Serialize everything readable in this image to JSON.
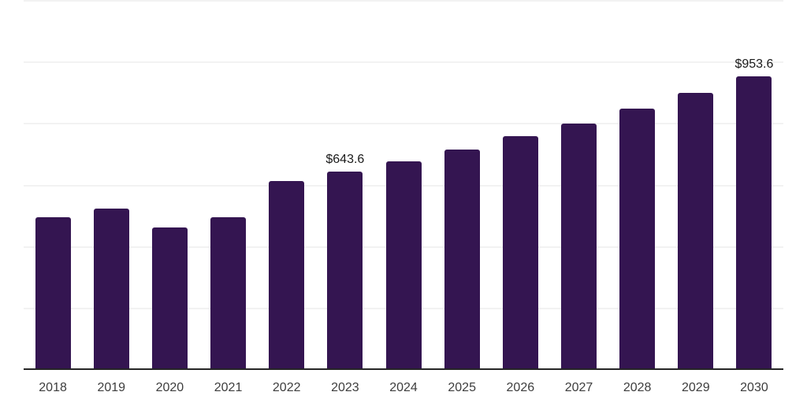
{
  "chart_data": {
    "type": "bar",
    "title": "",
    "xlabel": "",
    "ylabel": "",
    "categories": [
      "2018",
      "2019",
      "2020",
      "2021",
      "2022",
      "2023",
      "2024",
      "2025",
      "2026",
      "2027",
      "2028",
      "2029",
      "2030"
    ],
    "values": [
      496.1,
      525.4,
      462.0,
      496.1,
      613.4,
      643.6,
      678.0,
      715.8,
      759.2,
      800.0,
      848.8,
      900.0,
      953.6
    ],
    "data_labels": {
      "2023": "$643.6",
      "2030": "$953.6"
    },
    "ylim": [
      0,
      1200
    ],
    "gridline_step": 200,
    "grid": true,
    "legend": false,
    "colors": {
      "bar": "#341551",
      "gridline": "#f2f2f2",
      "axis_line": "#262626",
      "data_label_text": "#1a1a1a",
      "axis_label_text": "#3d3d3d",
      "background": "#ffffff"
    }
  }
}
